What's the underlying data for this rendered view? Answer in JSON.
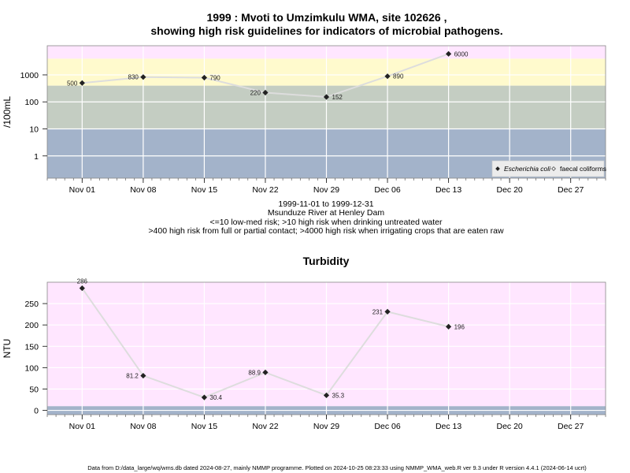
{
  "chart_data": [
    {
      "type": "line",
      "title_line1": "1999 : Mvoti to Umzimkulu WMA, site 102626 ,",
      "title_line2": "showing high risk guidelines for indicators of microbial pathogens.",
      "ylabel": "/100mL",
      "yscale": "log",
      "ylim": [
        0.15,
        12000
      ],
      "yticks": [
        {
          "value": 1,
          "label": "1"
        },
        {
          "value": 10,
          "label": "10"
        },
        {
          "value": 100,
          "label": "100"
        },
        {
          "value": 1000,
          "label": "1000"
        }
      ],
      "xlim": [
        "1999-10-28",
        "1999-12-31"
      ],
      "xticks": [
        {
          "date": "1999-11-01",
          "label": "Nov 01"
        },
        {
          "date": "1999-11-08",
          "label": "Nov 08"
        },
        {
          "date": "1999-11-15",
          "label": "Nov 15"
        },
        {
          "date": "1999-11-22",
          "label": "Nov 22"
        },
        {
          "date": "1999-11-29",
          "label": "Nov 29"
        },
        {
          "date": "1999-12-06",
          "label": "Dec 06"
        },
        {
          "date": "1999-12-13",
          "label": "Dec 13"
        },
        {
          "date": "1999-12-20",
          "label": "Dec 20"
        },
        {
          "date": "1999-12-27",
          "label": "Dec 27"
        }
      ],
      "bands": [
        {
          "from": 0.15,
          "to": 10,
          "color": "#a3b3ca"
        },
        {
          "from": 10,
          "to": 400,
          "color": "#c4cdc2"
        },
        {
          "from": 400,
          "to": 4000,
          "color": "#fffacd"
        },
        {
          "from": 4000,
          "to": 12000,
          "color": "#ffe6ff"
        }
      ],
      "series": [
        {
          "name": "Escherichia coli",
          "marker": "filled-diamond",
          "x": [
            "1999-11-01",
            "1999-11-08",
            "1999-11-15",
            "1999-11-22",
            "1999-11-29",
            "1999-12-06",
            "1999-12-13"
          ],
          "y": [
            500,
            830,
            790,
            220,
            152,
            890,
            6000
          ],
          "labels": [
            "500",
            "830",
            "790",
            "220",
            "152",
            "890",
            "6000"
          ]
        }
      ],
      "legend": {
        "position": "bottom-right",
        "entries": [
          {
            "label": "Escherichia coli",
            "italic": true,
            "marker": "filled-diamond"
          },
          {
            "label": "faecal coliforms",
            "italic": false,
            "marker": "open-diamond"
          }
        ]
      },
      "subtitle_lines": [
        "1999-11-01 to 1999-12-31",
        "Msunduze River at Henley Dam",
        "<=10 low-med risk; >10 high risk when drinking untreated water",
        ">400 high risk from full or partial contact; >4000 high risk when irrigating crops that are eaten raw"
      ],
      "grid": true
    },
    {
      "type": "line",
      "title": "Turbidity",
      "ylabel": "NTU",
      "yscale": "linear",
      "ylim": [
        -10,
        300
      ],
      "yticks": [
        {
          "value": 0,
          "label": "0"
        },
        {
          "value": 50,
          "label": "50"
        },
        {
          "value": 100,
          "label": "100"
        },
        {
          "value": 150,
          "label": "150"
        },
        {
          "value": 200,
          "label": "200"
        },
        {
          "value": 250,
          "label": "250"
        }
      ],
      "xlim": [
        "1999-10-28",
        "1999-12-31"
      ],
      "xticks": [
        {
          "date": "1999-11-01",
          "label": "Nov 01"
        },
        {
          "date": "1999-11-08",
          "label": "Nov 08"
        },
        {
          "date": "1999-11-15",
          "label": "Nov 15"
        },
        {
          "date": "1999-11-22",
          "label": "Nov 22"
        },
        {
          "date": "1999-11-29",
          "label": "Nov 29"
        },
        {
          "date": "1999-12-06",
          "label": "Dec 06"
        },
        {
          "date": "1999-12-13",
          "label": "Dec 13"
        },
        {
          "date": "1999-12-20",
          "label": "Dec 20"
        },
        {
          "date": "1999-12-27",
          "label": "Dec 27"
        }
      ],
      "bands": [
        {
          "from": -10,
          "to": 10,
          "color": "#a3b3ca"
        },
        {
          "from": 10,
          "to": 300,
          "color": "#ffe6ff"
        }
      ],
      "series": [
        {
          "name": "",
          "marker": "filled-diamond",
          "x": [
            "1999-11-01",
            "1999-11-08",
            "1999-11-15",
            "1999-11-22",
            "1999-11-29",
            "1999-12-06",
            "1999-12-13"
          ],
          "y": [
            286,
            81.2,
            30.4,
            88.9,
            35.3,
            231,
            196
          ],
          "labels": [
            "286",
            "81.2",
            "30.4",
            "88.9",
            "35.3",
            "231",
            "196"
          ]
        }
      ],
      "grid": true
    }
  ],
  "footer": "Data from D:/data_large/wq/wms.db dated 2024-08-27, mainly NMMP programme. Plotted on 2024-10-25 08:23:33 using NMMP_WMA_web.R ver 9.3 under R version 4.4.1 (2024-06-14 ucrt)",
  "colors": {
    "grid": "#ffffff",
    "line": "#dddddd",
    "marker": "#222222",
    "frame": "#888888"
  }
}
